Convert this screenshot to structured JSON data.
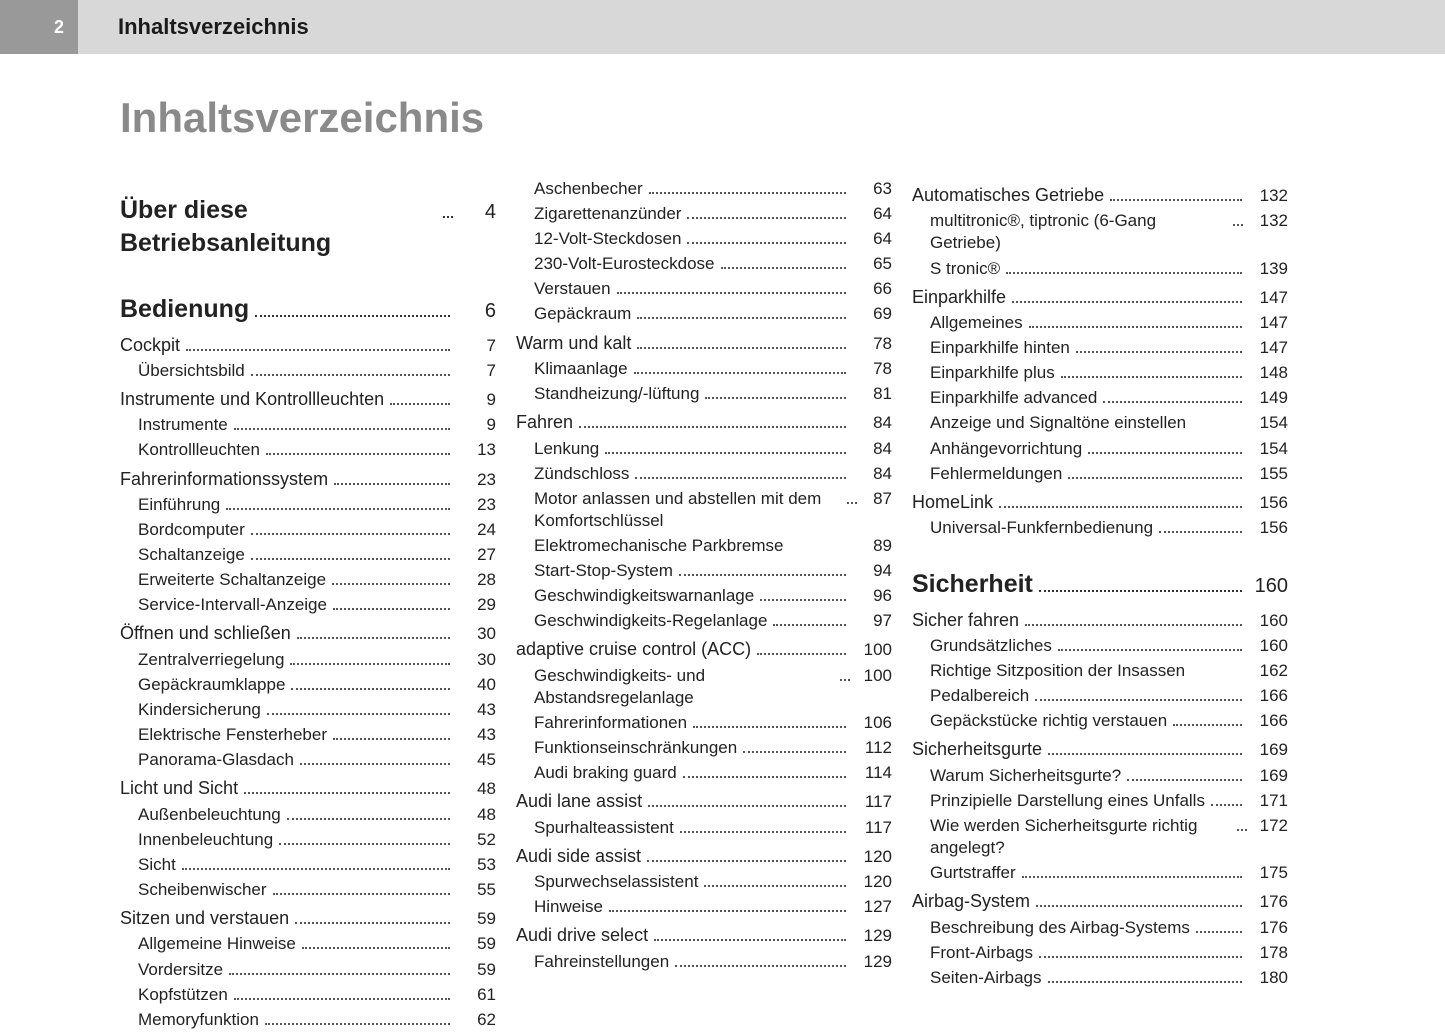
{
  "pageNumber": "2",
  "headerTitle": "Inhaltsverzeichnis",
  "mainTitle": "Inhaltsverzeichnis",
  "columns": [
    [
      {
        "type": "section",
        "label": "Über diese Betriebsanleitung",
        "page": "4"
      },
      {
        "type": "spacer"
      },
      {
        "type": "section",
        "label": "Bedienung",
        "page": "6"
      },
      {
        "type": "heading",
        "label": "Cockpit",
        "page": "7"
      },
      {
        "type": "sub",
        "label": "Übersichtsbild",
        "page": "7"
      },
      {
        "type": "heading",
        "label": "Instrumente und Kontrollleuchten",
        "page": "9"
      },
      {
        "type": "sub",
        "label": "Instrumente",
        "page": "9"
      },
      {
        "type": "sub",
        "label": "Kontrollleuchten",
        "page": "13"
      },
      {
        "type": "heading",
        "label": "Fahrerinformationssystem",
        "page": "23"
      },
      {
        "type": "sub",
        "label": "Einführung",
        "page": "23"
      },
      {
        "type": "sub",
        "label": "Bordcomputer",
        "page": "24"
      },
      {
        "type": "sub",
        "label": "Schaltanzeige",
        "page": "27"
      },
      {
        "type": "sub",
        "label": "Erweiterte Schaltanzeige",
        "page": "28"
      },
      {
        "type": "sub",
        "label": "Service-Intervall-Anzeige",
        "page": "29"
      },
      {
        "type": "heading",
        "label": "Öffnen und schließen",
        "page": "30"
      },
      {
        "type": "sub",
        "label": "Zentralverriegelung",
        "page": "30"
      },
      {
        "type": "sub",
        "label": "Gepäckraumklappe",
        "page": "40"
      },
      {
        "type": "sub",
        "label": "Kindersicherung",
        "page": "43"
      },
      {
        "type": "sub",
        "label": "Elektrische Fensterheber",
        "page": "43"
      },
      {
        "type": "sub",
        "label": "Panorama-Glasdach",
        "page": "45"
      },
      {
        "type": "heading",
        "label": "Licht und Sicht",
        "page": "48"
      },
      {
        "type": "sub",
        "label": "Außenbeleuchtung",
        "page": "48"
      },
      {
        "type": "sub",
        "label": "Innenbeleuchtung",
        "page": "52"
      },
      {
        "type": "sub",
        "label": "Sicht",
        "page": "53"
      },
      {
        "type": "sub",
        "label": "Scheibenwischer",
        "page": "55"
      },
      {
        "type": "heading",
        "label": "Sitzen und verstauen",
        "page": "59"
      },
      {
        "type": "sub",
        "label": "Allgemeine Hinweise",
        "page": "59"
      },
      {
        "type": "sub",
        "label": "Vordersitze",
        "page": "59"
      },
      {
        "type": "sub",
        "label": "Kopfstützen",
        "page": "61"
      },
      {
        "type": "sub",
        "label": "Memoryfunktion",
        "page": "62"
      }
    ],
    [
      {
        "type": "sub",
        "label": "Aschenbecher",
        "page": "63"
      },
      {
        "type": "sub",
        "label": "Zigarettenanzünder",
        "page": "64"
      },
      {
        "type": "sub",
        "label": "12-Volt-Steckdosen",
        "page": "64"
      },
      {
        "type": "sub",
        "label": "230-Volt-Eurosteckdose",
        "page": "65"
      },
      {
        "type": "sub",
        "label": "Verstauen",
        "page": "66"
      },
      {
        "type": "sub",
        "label": "Gepäckraum",
        "page": "69"
      },
      {
        "type": "heading",
        "label": "Warm und kalt",
        "page": "78"
      },
      {
        "type": "sub",
        "label": "Klimaanlage",
        "page": "78"
      },
      {
        "type": "sub",
        "label": "Standheizung/-lüftung",
        "page": "81"
      },
      {
        "type": "heading",
        "label": "Fahren",
        "page": "84"
      },
      {
        "type": "sub",
        "label": "Lenkung",
        "page": "84"
      },
      {
        "type": "sub",
        "label": "Zündschloss",
        "page": "84"
      },
      {
        "type": "sub",
        "label": "Motor anlassen und abstellen mit dem Komfortschlüssel",
        "page": "87"
      },
      {
        "type": "sub",
        "label": "Elektromechanische Parkbremse",
        "page": "89",
        "nodots": true
      },
      {
        "type": "sub",
        "label": "Start-Stop-System",
        "page": "94"
      },
      {
        "type": "sub",
        "label": "Geschwindigkeitswarnanlage",
        "page": "96"
      },
      {
        "type": "sub",
        "label": "Geschwindigkeits-Regelanlage",
        "page": "97"
      },
      {
        "type": "heading",
        "label": "adaptive cruise control (ACC)",
        "page": "100"
      },
      {
        "type": "sub",
        "label": "Geschwindigkeits- und Abstandsregelanlage",
        "page": "100"
      },
      {
        "type": "sub",
        "label": "Fahrerinformationen",
        "page": "106"
      },
      {
        "type": "sub",
        "label": "Funktionseinschränkungen",
        "page": "112"
      },
      {
        "type": "sub",
        "label": "Audi braking guard",
        "page": "114"
      },
      {
        "type": "heading",
        "label": "Audi lane assist",
        "page": "117"
      },
      {
        "type": "sub",
        "label": "Spurhalteassistent",
        "page": "117"
      },
      {
        "type": "heading",
        "label": "Audi side assist",
        "page": "120"
      },
      {
        "type": "sub",
        "label": "Spurwechselassistent",
        "page": "120"
      },
      {
        "type": "sub",
        "label": "Hinweise",
        "page": "127"
      },
      {
        "type": "heading",
        "label": "Audi drive select",
        "page": "129"
      },
      {
        "type": "sub",
        "label": "Fahreinstellungen",
        "page": "129"
      }
    ],
    [
      {
        "type": "heading",
        "label": "Automatisches Getriebe",
        "page": "132"
      },
      {
        "type": "sub",
        "label": "multitronic®, tiptronic (6-Gang Getriebe)",
        "page": "132"
      },
      {
        "type": "sub",
        "label": "S tronic®",
        "page": "139"
      },
      {
        "type": "heading",
        "label": "Einparkhilfe",
        "page": "147"
      },
      {
        "type": "sub",
        "label": "Allgemeines",
        "page": "147"
      },
      {
        "type": "sub",
        "label": "Einparkhilfe hinten",
        "page": "147"
      },
      {
        "type": "sub",
        "label": "Einparkhilfe plus",
        "page": "148"
      },
      {
        "type": "sub",
        "label": "Einparkhilfe advanced",
        "page": "149"
      },
      {
        "type": "sub",
        "label": "Anzeige und Signaltöne einstellen",
        "page": "154",
        "nodots": true
      },
      {
        "type": "sub",
        "label": "Anhängevorrichtung",
        "page": "154"
      },
      {
        "type": "sub",
        "label": "Fehlermeldungen",
        "page": "155"
      },
      {
        "type": "heading",
        "label": "HomeLink",
        "page": "156"
      },
      {
        "type": "sub",
        "label": "Universal-Funkfernbedienung",
        "page": "156"
      },
      {
        "type": "spacer"
      },
      {
        "type": "section",
        "label": "Sicherheit",
        "page": "160"
      },
      {
        "type": "heading",
        "label": "Sicher fahren",
        "page": "160"
      },
      {
        "type": "sub",
        "label": "Grundsätzliches",
        "page": "160"
      },
      {
        "type": "sub",
        "label": "Richtige Sitzposition der Insassen",
        "page": "162",
        "nodots": true
      },
      {
        "type": "sub",
        "label": "Pedalbereich",
        "page": "166"
      },
      {
        "type": "sub",
        "label": "Gepäckstücke richtig verstauen",
        "page": "166"
      },
      {
        "type": "heading",
        "label": "Sicherheitsgurte",
        "page": "169"
      },
      {
        "type": "sub",
        "label": "Warum Sicherheitsgurte?",
        "page": "169"
      },
      {
        "type": "sub",
        "label": "Prinzipielle Darstellung eines Unfalls",
        "page": "171"
      },
      {
        "type": "sub",
        "label": "Wie werden Sicherheitsgurte richtig angelegt?",
        "page": "172"
      },
      {
        "type": "sub",
        "label": "Gurtstraffer",
        "page": "175"
      },
      {
        "type": "heading",
        "label": "Airbag-System",
        "page": "176"
      },
      {
        "type": "sub",
        "label": "Beschreibung des Airbag-Systems",
        "page": "176"
      },
      {
        "type": "sub",
        "label": "Front-Airbags",
        "page": "178"
      },
      {
        "type": "sub",
        "label": "Seiten-Airbags",
        "page": "180"
      }
    ]
  ]
}
